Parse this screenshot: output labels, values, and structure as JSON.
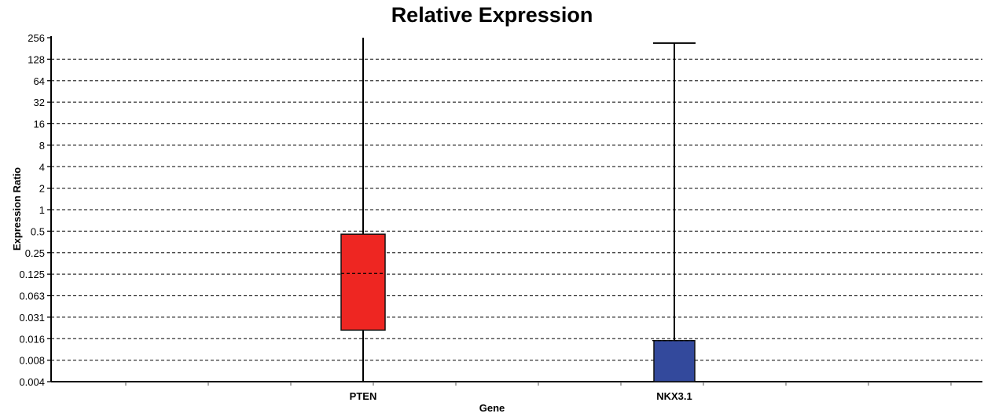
{
  "chart_data": {
    "type": "box",
    "title": "Relative Expression",
    "xlabel": "Gene",
    "ylabel": "Expression Ratio",
    "yscale": "log2",
    "ylim": [
      0.004,
      256
    ],
    "yticks": [
      "0.004",
      "0.008",
      "0.016",
      "0.031",
      "0.063",
      "0.125",
      "0.25",
      "0.5",
      "1",
      "2",
      "4",
      "8",
      "16",
      "32",
      "64",
      "128",
      "256"
    ],
    "categories": [
      "PTEN",
      "NKX3.1"
    ],
    "boxes": [
      {
        "category": "PTEN",
        "whisker_low": 0.004,
        "q1": 0.021,
        "median": 0.13,
        "q3": 0.46,
        "whisker_high": 256,
        "color": "#ee2622"
      },
      {
        "category": "NKX3.1",
        "whisker_low": 0.004,
        "q1": 0.004,
        "median": 0.015,
        "q3": 0.015,
        "whisker_high": 215,
        "color": "#33499c"
      }
    ],
    "grid": true,
    "legend": "none"
  }
}
